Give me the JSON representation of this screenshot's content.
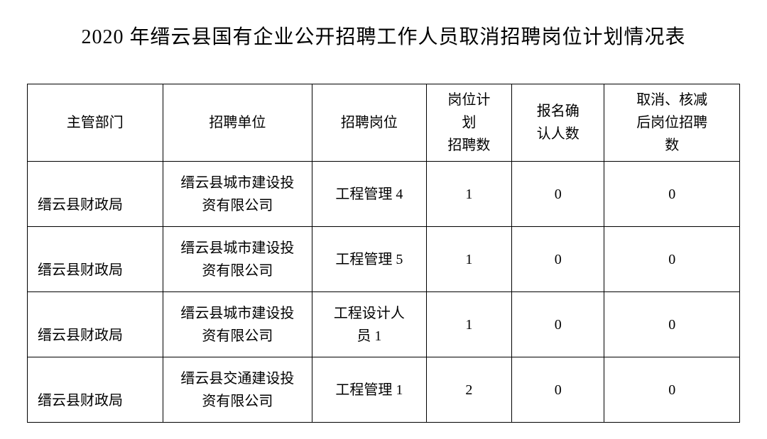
{
  "title": "2020 年缙云县国有企业公开招聘工作人员取消招聘岗位计划情况表",
  "table": {
    "type": "table",
    "background_color": "#ffffff",
    "border_color": "#000000",
    "text_color": "#000000",
    "title_fontsize": 28,
    "cell_fontsize": 20,
    "columns": [
      {
        "key": "department",
        "label": "主管部门",
        "width_pct": 19,
        "align": "left"
      },
      {
        "key": "unit",
        "label": "招聘单位",
        "width_pct": 21,
        "align": "center"
      },
      {
        "key": "position",
        "label": "招聘岗位",
        "width_pct": 16,
        "align": "center"
      },
      {
        "key": "plan_count",
        "label": "岗位计划招聘数",
        "width_pct": 12,
        "align": "center"
      },
      {
        "key": "confirmed_count",
        "label": "报名确认人数",
        "width_pct": 13,
        "align": "center"
      },
      {
        "key": "after_count",
        "label": "取消、核减后岗位招聘数",
        "width_pct": 19,
        "align": "center"
      }
    ],
    "header_labels": {
      "department": "主管部门",
      "unit": "招聘单位",
      "position": "招聘岗位",
      "plan_line1": "岗位计",
      "plan_line2": "划",
      "plan_line3": "招聘数",
      "confirmed_line1": "报名确",
      "confirmed_line2": "认人数",
      "after_line1": "取消、核减",
      "after_line2": "后岗位招聘",
      "after_line3": "数"
    },
    "rows": [
      {
        "department": "缙云县财政局",
        "unit_line1": "缙云县城市建设投",
        "unit_line2": "资有限公司",
        "position": "工程管理 4",
        "plan_count": "1",
        "confirmed_count": "0",
        "after_count": "0"
      },
      {
        "department": "缙云县财政局",
        "unit_line1": "缙云县城市建设投",
        "unit_line2": "资有限公司",
        "position": "工程管理 5",
        "plan_count": "1",
        "confirmed_count": "0",
        "after_count": "0"
      },
      {
        "department": "缙云县财政局",
        "unit_line1": "缙云县城市建设投",
        "unit_line2": "资有限公司",
        "position_line1": "工程设计人",
        "position_line2": "员 1",
        "plan_count": "1",
        "confirmed_count": "0",
        "after_count": "0"
      },
      {
        "department": "缙云县财政局",
        "unit_line1": "缙云县交通建设投",
        "unit_line2": "资有限公司",
        "position": "工程管理 1",
        "plan_count": "2",
        "confirmed_count": "0",
        "after_count": "0"
      }
    ]
  }
}
